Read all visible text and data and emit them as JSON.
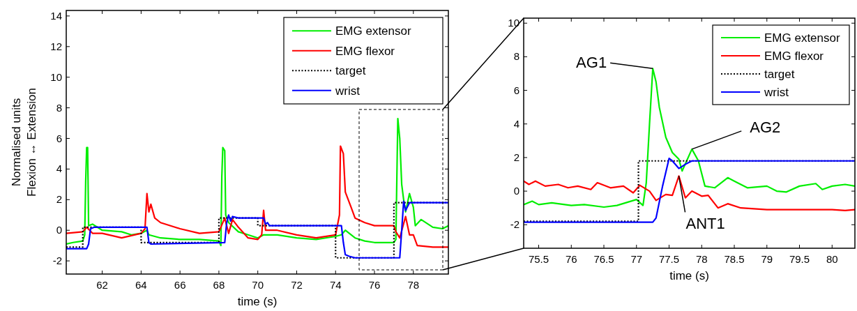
{
  "chart_data": [
    {
      "type": "line",
      "xlabel": "time (s)",
      "ylabel": "Normalised units\nFlexion ↔ Extension",
      "xlim": [
        60.15,
        79.8
      ],
      "ylim": [
        -2.86,
        14.36
      ],
      "xticks": [
        62,
        64,
        66,
        68,
        70,
        72,
        74,
        76,
        78
      ],
      "yticks": [
        -2,
        0,
        2,
        4,
        6,
        8,
        10,
        12,
        14
      ],
      "legend": "top right",
      "series": [
        {
          "name": "EMG extensor",
          "color": "#00ee00",
          "x": [
            60.15,
            60.5,
            61.0,
            61.1,
            61.15,
            61.2,
            61.25,
            61.3,
            61.5,
            62,
            63,
            63.5,
            64,
            64.3,
            64.4,
            65,
            66,
            67,
            68,
            68.1,
            68.15,
            68.2,
            68.3,
            68.35,
            68.5,
            69,
            69.5,
            70,
            70.3,
            71,
            72,
            73,
            74,
            74.3,
            74.5,
            75,
            75.5,
            76,
            77,
            77.1,
            77.2,
            77.3,
            77.4,
            77.5,
            77.6,
            77.8,
            78,
            78.1,
            78.4,
            79,
            79.5,
            79.8
          ],
          "values": [
            -0.9,
            -0.8,
            -0.7,
            -0.3,
            3.2,
            5.4,
            5.4,
            0.3,
            0.4,
            0.0,
            -0.1,
            -0.3,
            -0.2,
            0,
            -0.3,
            -0.5,
            -0.6,
            -0.6,
            -0.7,
            -1.0,
            3.5,
            5.4,
            5.2,
            1.0,
            0.5,
            -0.1,
            -0.3,
            -0.5,
            -0.3,
            -0.3,
            -0.5,
            -0.6,
            -0.4,
            -0.3,
            0.0,
            -0.5,
            -0.7,
            -0.8,
            -0.8,
            -0.6,
            7.3,
            6.0,
            3,
            2,
            1.2,
            2.4,
            1.5,
            0.3,
            0.7,
            0.2,
            0.1,
            0.3
          ]
        },
        {
          "name": "EMG flexor",
          "color": "#ff0000",
          "x": [
            60.15,
            61,
            61.2,
            61.5,
            62,
            63,
            64,
            64.2,
            64.3,
            64.4,
            64.5,
            64.7,
            65,
            66,
            67,
            68,
            68.3,
            68.5,
            68.7,
            69,
            69.5,
            70,
            70.2,
            70.3,
            70.4,
            71,
            72,
            73,
            74,
            74.2,
            74.25,
            74.4,
            74.5,
            74.8,
            75,
            75.5,
            76,
            77,
            77.1,
            77.3,
            77.6,
            77.8,
            78,
            78.2,
            79,
            79.8
          ],
          "values": [
            -0.2,
            -0.1,
            0.2,
            -0.2,
            -0.2,
            -0.5,
            -0.2,
            0.1,
            2.4,
            1.2,
            1.7,
            0.8,
            0.5,
            0.1,
            -0.2,
            -0.1,
            0.8,
            -0.2,
            0.7,
            0.2,
            -0.5,
            -0.6,
            -0.3,
            1.3,
            0.0,
            0.0,
            -0.3,
            -0.5,
            -0.3,
            1.0,
            5.5,
            5.0,
            2.5,
            1.5,
            0.8,
            0.5,
            0.3,
            0.3,
            -0.1,
            -0.5,
            0.9,
            -0.3,
            -0.3,
            -1.0,
            -1.1,
            -1.1
          ]
        },
        {
          "name": "target",
          "color": "#000000",
          "line_style": "dotted",
          "x": [
            60.15,
            61.0,
            61.0,
            64.0,
            64.0,
            68.0,
            68.0,
            70.0,
            70.0,
            74.0,
            74.0,
            77.0,
            77.0,
            79.8
          ],
          "values": [
            -1.1,
            -1.1,
            0.2,
            0.2,
            -0.8,
            -0.8,
            0.8,
            0.8,
            0.3,
            0.3,
            -1.8,
            -1.8,
            1.8,
            1.8
          ]
        },
        {
          "name": "wrist",
          "color": "#0000ff",
          "x": [
            60.15,
            61.2,
            61.3,
            61.4,
            61.6,
            64.3,
            64.4,
            64.5,
            68.3,
            68.4,
            68.5,
            68.6,
            68.7,
            69,
            70.3,
            70.4,
            70.5,
            70.6,
            74.3,
            74.4,
            74.5,
            74.7,
            75,
            77.3,
            77.4,
            77.5,
            77.6,
            77.8,
            79.8
          ],
          "values": [
            -1.2,
            -1.2,
            -0.9,
            0.1,
            0.2,
            0.2,
            -0.8,
            -0.9,
            -0.8,
            0.5,
            1.0,
            0.6,
            0.9,
            0.8,
            0.8,
            0.4,
            0.5,
            0.3,
            0.3,
            -0.8,
            -1.6,
            -1.7,
            -1.8,
            -1.8,
            0.0,
            1.9,
            1.3,
            1.8,
            1.8
          ]
        }
      ]
    },
    {
      "type": "line",
      "xlabel": "time (s)",
      "xlim": [
        75.27,
        80.35
      ],
      "ylim": [
        -3.4,
        10.3
      ],
      "xticks": [
        75.5,
        76,
        76.5,
        77,
        77.5,
        78,
        78.5,
        79,
        79.5,
        80
      ],
      "yticks": [
        -2,
        0,
        2,
        4,
        6,
        8,
        10
      ],
      "legend": "top right",
      "annotations": [
        {
          "text": "AG1",
          "x": 77.25,
          "y": 7.3
        },
        {
          "text": "AG2",
          "x": 77.85,
          "y": 2.5
        },
        {
          "text": "ANT1",
          "x": 77.65,
          "y": 0.9
        }
      ],
      "series": [
        {
          "name": "EMG extensor",
          "color": "#00ee00",
          "x": [
            75.27,
            75.4,
            75.5,
            75.7,
            76,
            76.2,
            76.5,
            76.7,
            77.0,
            77.1,
            77.15,
            77.2,
            77.25,
            77.3,
            77.35,
            77.45,
            77.55,
            77.65,
            77.7,
            77.85,
            77.95,
            78.05,
            78.2,
            78.4,
            78.5,
            78.7,
            79,
            79.15,
            79.3,
            79.5,
            79.75,
            79.85,
            80.0,
            80.2,
            80.35
          ],
          "values": [
            -0.8,
            -0.6,
            -0.8,
            -0.7,
            -0.85,
            -0.8,
            -0.95,
            -0.85,
            -0.5,
            -0.85,
            0.5,
            4.0,
            7.3,
            6.5,
            5,
            3.2,
            2.3,
            1.9,
            1.2,
            2.5,
            1.8,
            0.3,
            0.2,
            0.8,
            0.6,
            0.2,
            0.3,
            0.0,
            -0.05,
            0.3,
            0.45,
            0.1,
            0.3,
            0.4,
            0.3
          ]
        },
        {
          "name": "EMG flexor",
          "color": "#ff0000",
          "x": [
            75.27,
            75.35,
            75.45,
            75.6,
            75.8,
            75.95,
            76.1,
            76.3,
            76.4,
            76.6,
            76.8,
            76.95,
            77.05,
            77.2,
            77.3,
            77.45,
            77.55,
            77.65,
            77.75,
            77.85,
            78,
            78.1,
            78.25,
            78.4,
            78.6,
            79,
            79.5,
            80,
            80.2,
            80.35
          ],
          "values": [
            0.6,
            0.4,
            0.6,
            0.3,
            0.4,
            0.2,
            0.3,
            0.1,
            0.5,
            0.2,
            0.3,
            -0.1,
            0.35,
            0,
            -0.55,
            -0.2,
            -0.25,
            0.9,
            -0.4,
            0,
            -0.3,
            -0.25,
            -1.0,
            -0.75,
            -1.0,
            -1.1,
            -1.1,
            -1.1,
            -1.15,
            -1.1
          ]
        },
        {
          "name": "target",
          "color": "#000000",
          "line_style": "dotted",
          "x": [
            75.27,
            77.03,
            77.03,
            80.35
          ],
          "values": [
            -1.8,
            -1.8,
            1.8,
            1.8
          ]
        },
        {
          "name": "wrist",
          "color": "#0000ff",
          "x": [
            75.27,
            77.25,
            77.3,
            77.4,
            77.5,
            77.55,
            77.65,
            77.75,
            77.85,
            80.35
          ],
          "values": [
            -1.85,
            -1.85,
            -1.6,
            0.3,
            1.95,
            1.8,
            1.35,
            1.6,
            1.8,
            1.8
          ]
        }
      ]
    }
  ]
}
